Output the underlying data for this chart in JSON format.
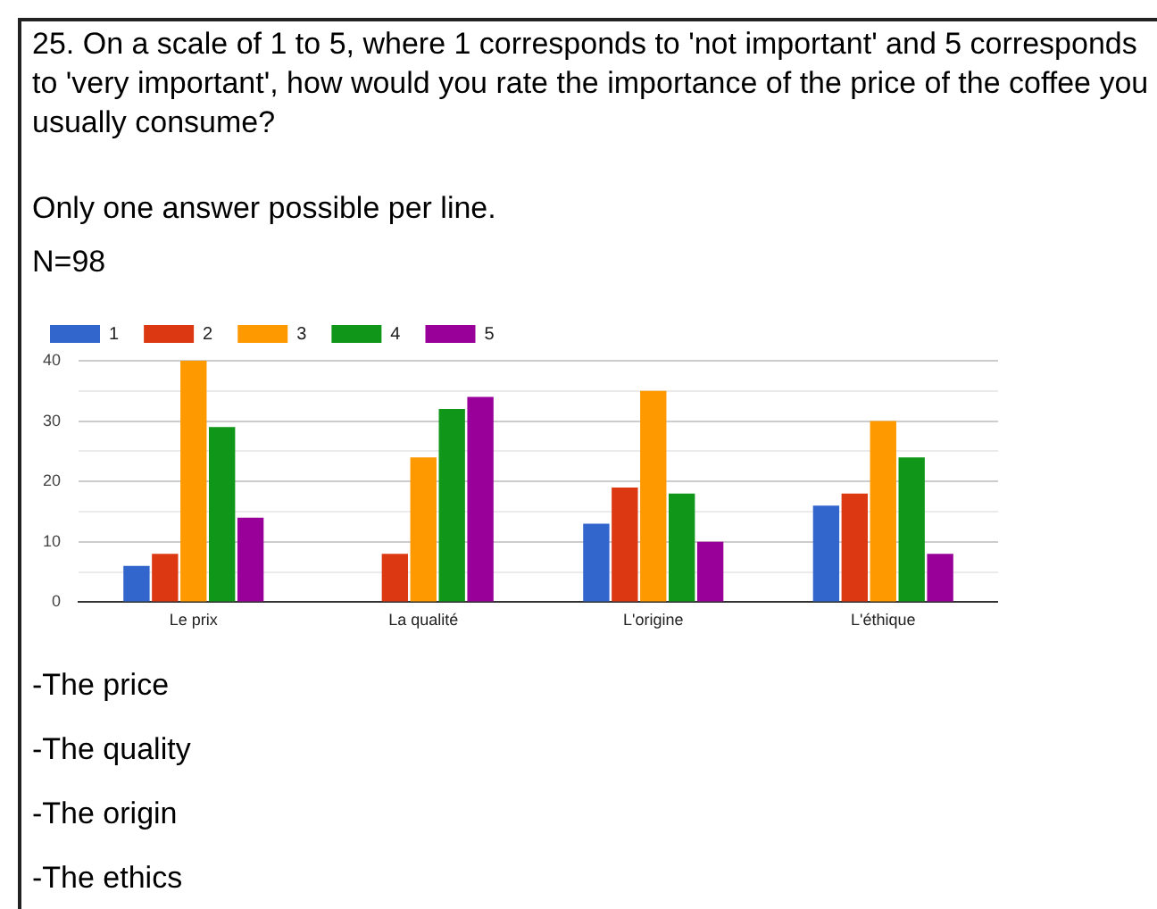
{
  "chart_data": {
    "type": "bar",
    "title": "25. On a scale of 1 to 5, where 1 corresponds to 'not important' and 5 corresponds to 'very important', how would you rate the importance of the price of the coffee you usually consume?",
    "annotations": [
      "Only one answer possible per line.",
      "N=98",
      "-The price",
      "-The quality",
      "-The origin",
      "-The ethics"
    ],
    "categories": [
      "Le prix",
      "La qualité",
      "L'origine",
      "L'éthique"
    ],
    "series": [
      {
        "name": "1",
        "color": "#3366cc",
        "values": [
          6,
          0,
          13,
          16
        ]
      },
      {
        "name": "2",
        "color": "#dc3912",
        "values": [
          8,
          8,
          19,
          18
        ]
      },
      {
        "name": "3",
        "color": "#ff9900",
        "values": [
          40,
          24,
          35,
          30
        ]
      },
      {
        "name": "4",
        "color": "#109618",
        "values": [
          29,
          32,
          18,
          24
        ]
      },
      {
        "name": "5",
        "color": "#990099",
        "values": [
          14,
          34,
          10,
          8
        ]
      }
    ],
    "ylim": [
      0,
      40
    ],
    "yticks": [
      0,
      {
        "value": 5,
        "label": null
      },
      10,
      {
        "value": 15,
        "label": null
      },
      20,
      {
        "value": 25,
        "label": null
      },
      30,
      {
        "value": 35,
        "label": null
      },
      40
    ],
    "grid": "y",
    "legend": "top left"
  }
}
